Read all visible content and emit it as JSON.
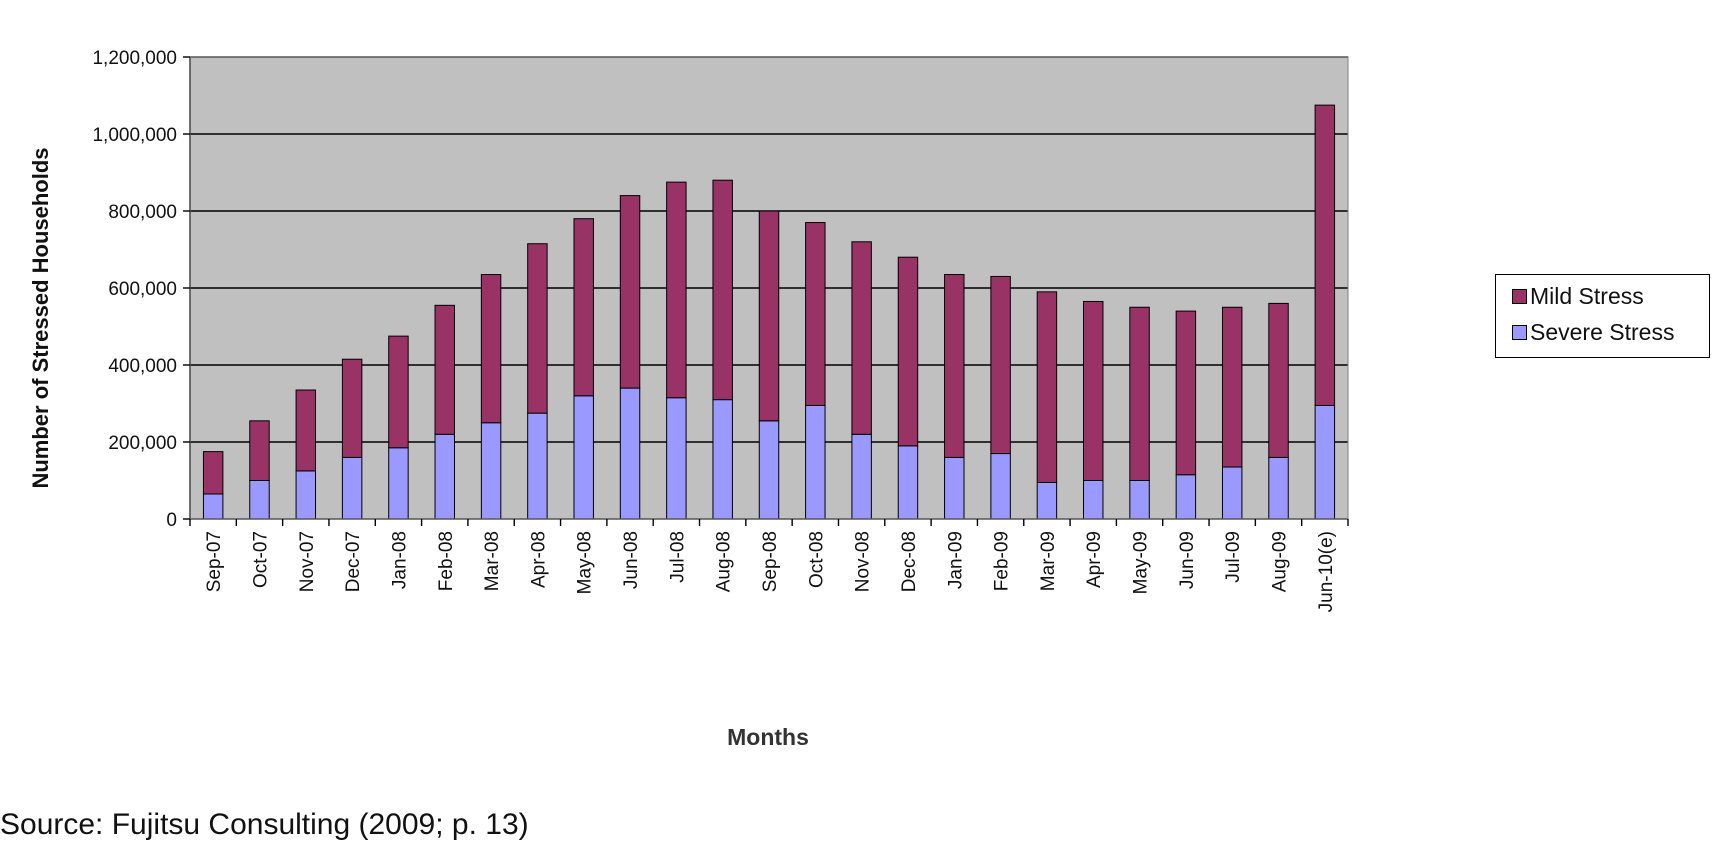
{
  "source_note": "Source: Fujitsu Consulting (2009; p. 13)",
  "colors": {
    "plot_background": "#c0c0c0",
    "mild_stress": "#993366",
    "severe_stress": "#9999ff",
    "gridline": "#000000"
  },
  "chart_data": {
    "type": "bar",
    "stacked": true,
    "title": "",
    "xlabel": "Months",
    "ylabel": "Number of Stressed Households",
    "ylim": [
      0,
      1200000
    ],
    "yticks": [
      0,
      200000,
      400000,
      600000,
      800000,
      1000000,
      1200000
    ],
    "ytick_labels": [
      "0",
      "200,000",
      "400,000",
      "600,000",
      "800,000",
      "1,000,000",
      "1,200,000"
    ],
    "grid": true,
    "legend_position": "right",
    "categories": [
      "Sep-07",
      "Oct-07",
      "Nov-07",
      "Dec-07",
      "Jan-08",
      "Feb-08",
      "Mar-08",
      "Apr-08",
      "May-08",
      "Jun-08",
      "Jul-08",
      "Aug-08",
      "Sep-08",
      "Oct-08",
      "Nov-08",
      "Dec-08",
      "Jan-09",
      "Feb-09",
      "Mar-09",
      "Apr-09",
      "May-09",
      "Jun-09",
      "Jul-09",
      "Aug-09",
      "Jun-10(e)"
    ],
    "series": [
      {
        "name": "Severe Stress",
        "color": "#9999ff",
        "values": [
          65000,
          100000,
          125000,
          160000,
          185000,
          220000,
          250000,
          275000,
          320000,
          340000,
          315000,
          310000,
          255000,
          295000,
          220000,
          190000,
          160000,
          170000,
          95000,
          100000,
          100000,
          115000,
          135000,
          160000,
          295000
        ]
      },
      {
        "name": "Mild Stress",
        "color": "#993366",
        "values": [
          110000,
          155000,
          210000,
          255000,
          290000,
          335000,
          385000,
          440000,
          460000,
          500000,
          560000,
          570000,
          545000,
          475000,
          500000,
          490000,
          475000,
          460000,
          495000,
          465000,
          450000,
          425000,
          415000,
          400000,
          780000
        ]
      }
    ]
  },
  "legend": {
    "items": [
      {
        "label": "Mild Stress",
        "color": "#993366"
      },
      {
        "label": "Severe Stress",
        "color": "#9999ff"
      }
    ]
  }
}
